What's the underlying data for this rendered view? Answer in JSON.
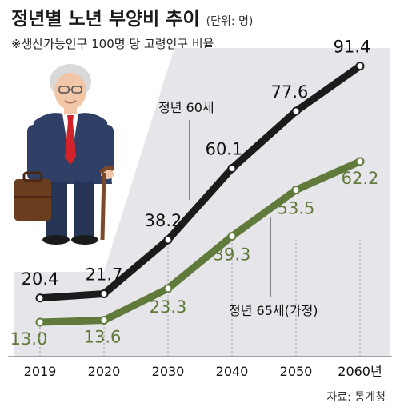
{
  "header": {
    "title": "정년별 노년 부양비 추이",
    "unit": "(단위: 명)",
    "subtitle": "※생산가능인구 100명 당 고령인구 비율"
  },
  "source": "자료: 통계청",
  "colors": {
    "series1": "#1b1b1b",
    "series2": "#5f7a3a",
    "panel": "#e6e6ea",
    "grid": "#9a9a9a"
  },
  "chart_data": {
    "type": "line",
    "x": [
      "2019",
      "2020",
      "2030",
      "2040",
      "2050",
      "2060년"
    ],
    "series": [
      {
        "name": "정년 60세",
        "values": [
          20.4,
          21.7,
          38.2,
          60.1,
          77.6,
          91.4
        ],
        "labels": [
          "20.4",
          "21.7",
          "38.2",
          "60.1",
          "77.6",
          "91.4"
        ]
      },
      {
        "name": "정년 65세(가정)",
        "values": [
          13.0,
          13.6,
          23.3,
          39.3,
          53.5,
          62.2
        ],
        "labels": [
          "13.0",
          "13.6",
          "23.3",
          "39.3",
          "53.5",
          "62.2"
        ]
      }
    ],
    "grid": true
  }
}
